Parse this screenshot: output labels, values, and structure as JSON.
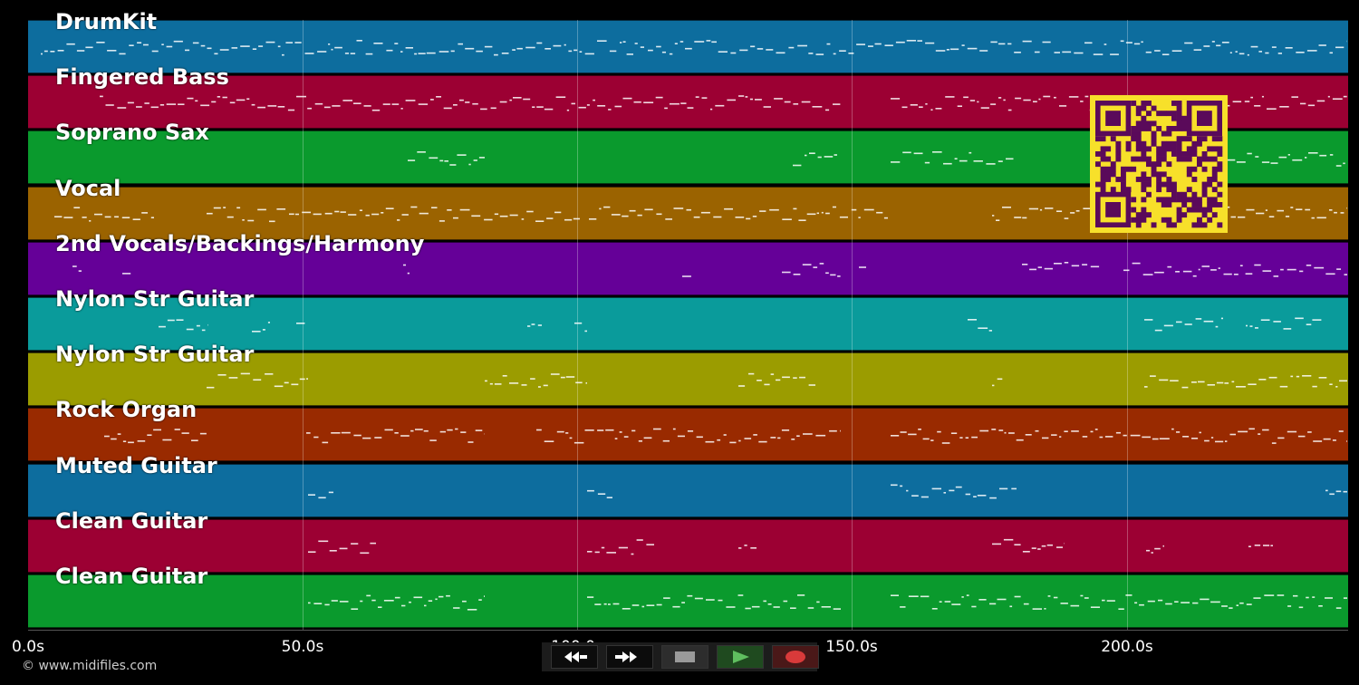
{
  "tracks": [
    {
      "name": "DrumKit",
      "color": "#0d6d9e"
    },
    {
      "name": "Fingered Bass",
      "color": "#9c0033"
    },
    {
      "name": "Soprano Sax",
      "color": "#0a9a2d"
    },
    {
      "name": "Vocal",
      "color": "#9b6300"
    },
    {
      "name": "2nd Vocals/Backings/Harmony",
      "color": "#650098"
    },
    {
      "name": "Nylon Str Guitar",
      "color": "#0a9b9b"
    },
    {
      "name": "Nylon Str Guitar",
      "color": "#9b9c00"
    },
    {
      "name": "Rock Organ",
      "color": "#992a00"
    },
    {
      "name": "Muted Guitar",
      "color": "#0d6d9e"
    },
    {
      "name": "Clean Guitar",
      "color": "#9c0033"
    },
    {
      "name": "Clean Guitar",
      "color": "#0a9a2d"
    }
  ],
  "timeline": {
    "ticks": [
      "0.0s",
      "50.0s",
      "100.0s",
      "150.0s",
      "200.0s"
    ]
  },
  "copyright": "© www.midifiles.com",
  "transport": {
    "buttons": [
      {
        "icon": "rewind-icon",
        "color": "#ffffff"
      },
      {
        "icon": "fast-forward-icon",
        "color": "#ffffff"
      },
      {
        "icon": "stop-icon",
        "color": "#9a9a9a"
      },
      {
        "icon": "play-icon",
        "color": "#5fbf5f"
      },
      {
        "icon": "record-icon",
        "color": "#d83a3a"
      }
    ]
  },
  "qr": {
    "fg": "#5a0a5a",
    "bg": "#f7e02a"
  }
}
